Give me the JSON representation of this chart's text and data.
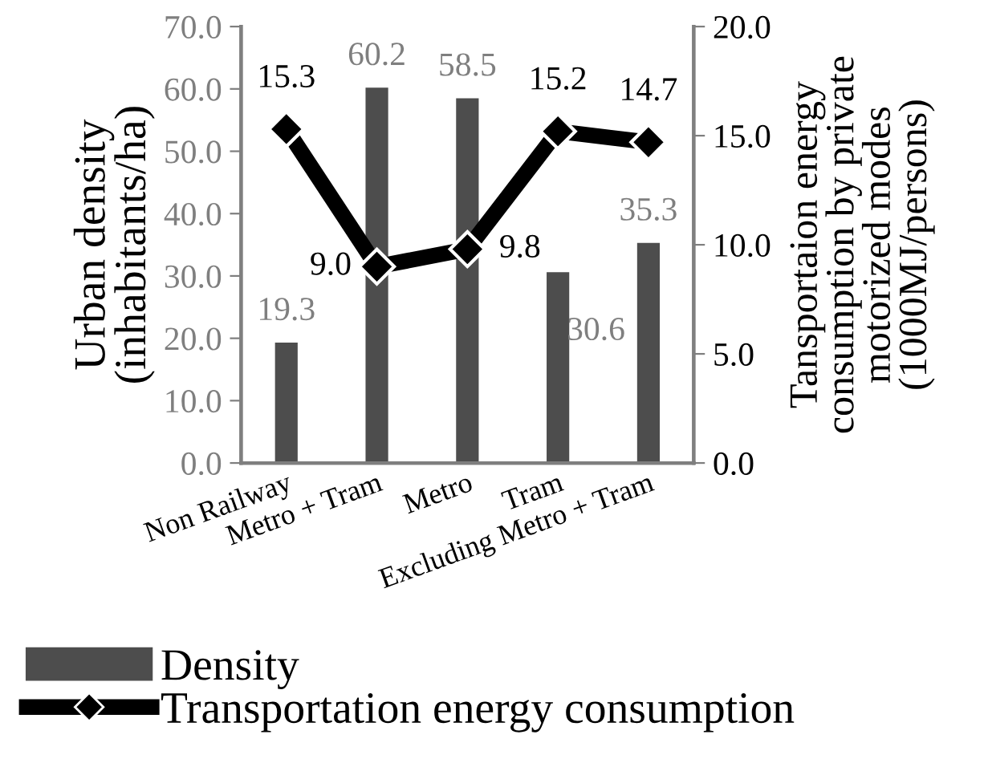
{
  "chart_data": {
    "type": "bar",
    "categories": [
      "Non Railway",
      "Metro + Tram",
      "Metro",
      "Tram",
      "Excluding Metro + Tram"
    ],
    "ylabel": "Urban density\n(inhabitants/ha)",
    "y2label": "Tansportaion energy\nconsumption by private\nmotorized modes\n(1000MJ/persons)",
    "series": [
      {
        "name": "Density",
        "color": "#4d4d4d",
        "values": [
          19.3,
          60.2,
          58.5,
          30.6,
          35.3
        ],
        "value_labels": [
          "19.3",
          "60.2",
          "58.5",
          "30.6",
          "35.3"
        ]
      },
      {
        "name": "Transportation energy consumption",
        "type": "line",
        "axis": "y2",
        "color": "#000000",
        "marker": "diamond",
        "values": [
          15.3,
          9.0,
          9.8,
          15.2,
          14.7
        ],
        "value_labels": [
          "15.3",
          "9.0",
          "9.8",
          "15.2",
          "14.7"
        ]
      }
    ],
    "ylim": [
      0,
      70
    ],
    "yticks": [
      {
        "value": 0,
        "label": "0.0"
      },
      {
        "value": 10,
        "label": "10.0"
      },
      {
        "value": 20,
        "label": "20.0"
      },
      {
        "value": 30,
        "label": "30.0"
      },
      {
        "value": 40,
        "label": "40.0"
      },
      {
        "value": 50,
        "label": "50.0"
      },
      {
        "value": 60,
        "label": "60.0"
      },
      {
        "value": 70,
        "label": "70.0"
      }
    ],
    "y2lim": [
      0,
      20
    ],
    "y2ticks": [
      {
        "value": 0,
        "label": "0.0"
      },
      {
        "value": 5,
        "label": "5.0"
      },
      {
        "value": 10,
        "label": "10.0"
      },
      {
        "value": 15,
        "label": "15.0"
      },
      {
        "value": 20,
        "label": "20.0"
      }
    ],
    "legend": "bottom left",
    "grid": false
  }
}
